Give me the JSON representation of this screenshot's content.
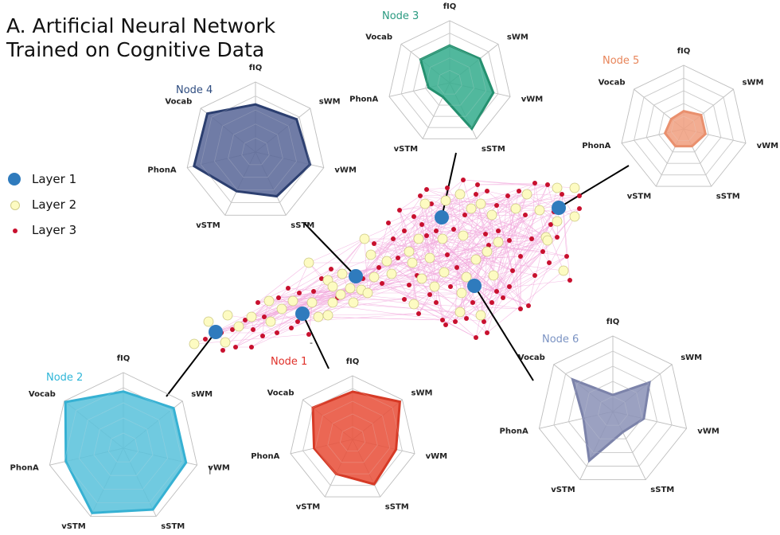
{
  "title": {
    "line1": "A. Artificial Neural Network",
    "line2": "Trained on Cognitive Data"
  },
  "legend": [
    {
      "label": "Layer 1",
      "marker": "large-blue-dot",
      "color": "#2f7bbd"
    },
    {
      "label": "Layer 2",
      "marker": "medium-yellow-dot",
      "color": "#fdfbc2"
    },
    {
      "label": "Layer 3",
      "marker": "small-red-dot",
      "color": "#c8102e"
    }
  ],
  "axes": [
    "fIQ",
    "sWM",
    "vWM",
    "sSTM",
    "vSTM",
    "PhonA",
    "Vocab"
  ],
  "nodes": [
    {
      "id": "node-1",
      "title": "Node 1",
      "title_color": "#e0312a",
      "fill": "#e8523c",
      "stroke": "#d63a26",
      "values": [
        0.75,
        0.95,
        0.7,
        0.78,
        0.6,
        0.62,
        0.8
      ]
    },
    {
      "id": "node-2",
      "title": "Node 2",
      "title_color": "#2fb6d8",
      "fill": "#5cc3dc",
      "stroke": "#36b1d3",
      "values": [
        0.75,
        0.85,
        0.85,
        0.9,
        0.95,
        0.78,
        0.98
      ]
    },
    {
      "id": "node-3",
      "title": "Node 3",
      "title_color": "#2a9a80",
      "fill": "#39ae8f",
      "stroke": "#24906f",
      "values": [
        0.6,
        0.62,
        0.72,
        0.82,
        0.25,
        0.35,
        0.6
      ]
    },
    {
      "id": "node-4",
      "title": "Node 4",
      "title_color": "#2f4d80",
      "fill": "#5c6a9a",
      "stroke": "#2c3f70",
      "values": [
        0.68,
        0.75,
        0.8,
        0.7,
        0.62,
        0.9,
        0.88
      ]
    },
    {
      "id": "node-5",
      "title": "Node 5",
      "title_color": "#e8855a",
      "fill": "#f0a082",
      "stroke": "#e9906e",
      "values": [
        0.28,
        0.35,
        0.35,
        0.3,
        0.3,
        0.3,
        0.25
      ]
    },
    {
      "id": "node-6",
      "title": "Node 6",
      "title_color": "#7b93c3",
      "fill": "#8d94b8",
      "stroke": "#7c83aa",
      "values": [
        0.22,
        0.62,
        0.42,
        0.3,
        0.72,
        0.4,
        0.68
      ]
    }
  ],
  "colors": {
    "edge": "#f1a8dc",
    "grid": "#bdbdbd",
    "layer1": "#2f7bbd",
    "layer2": "#fdfbc2",
    "layer2_stroke": "#cdc985",
    "layer3": "#c8102e"
  },
  "annotations": {
    "node2_vwm_mark": "|",
    "dash_near_node1": "-"
  }
}
